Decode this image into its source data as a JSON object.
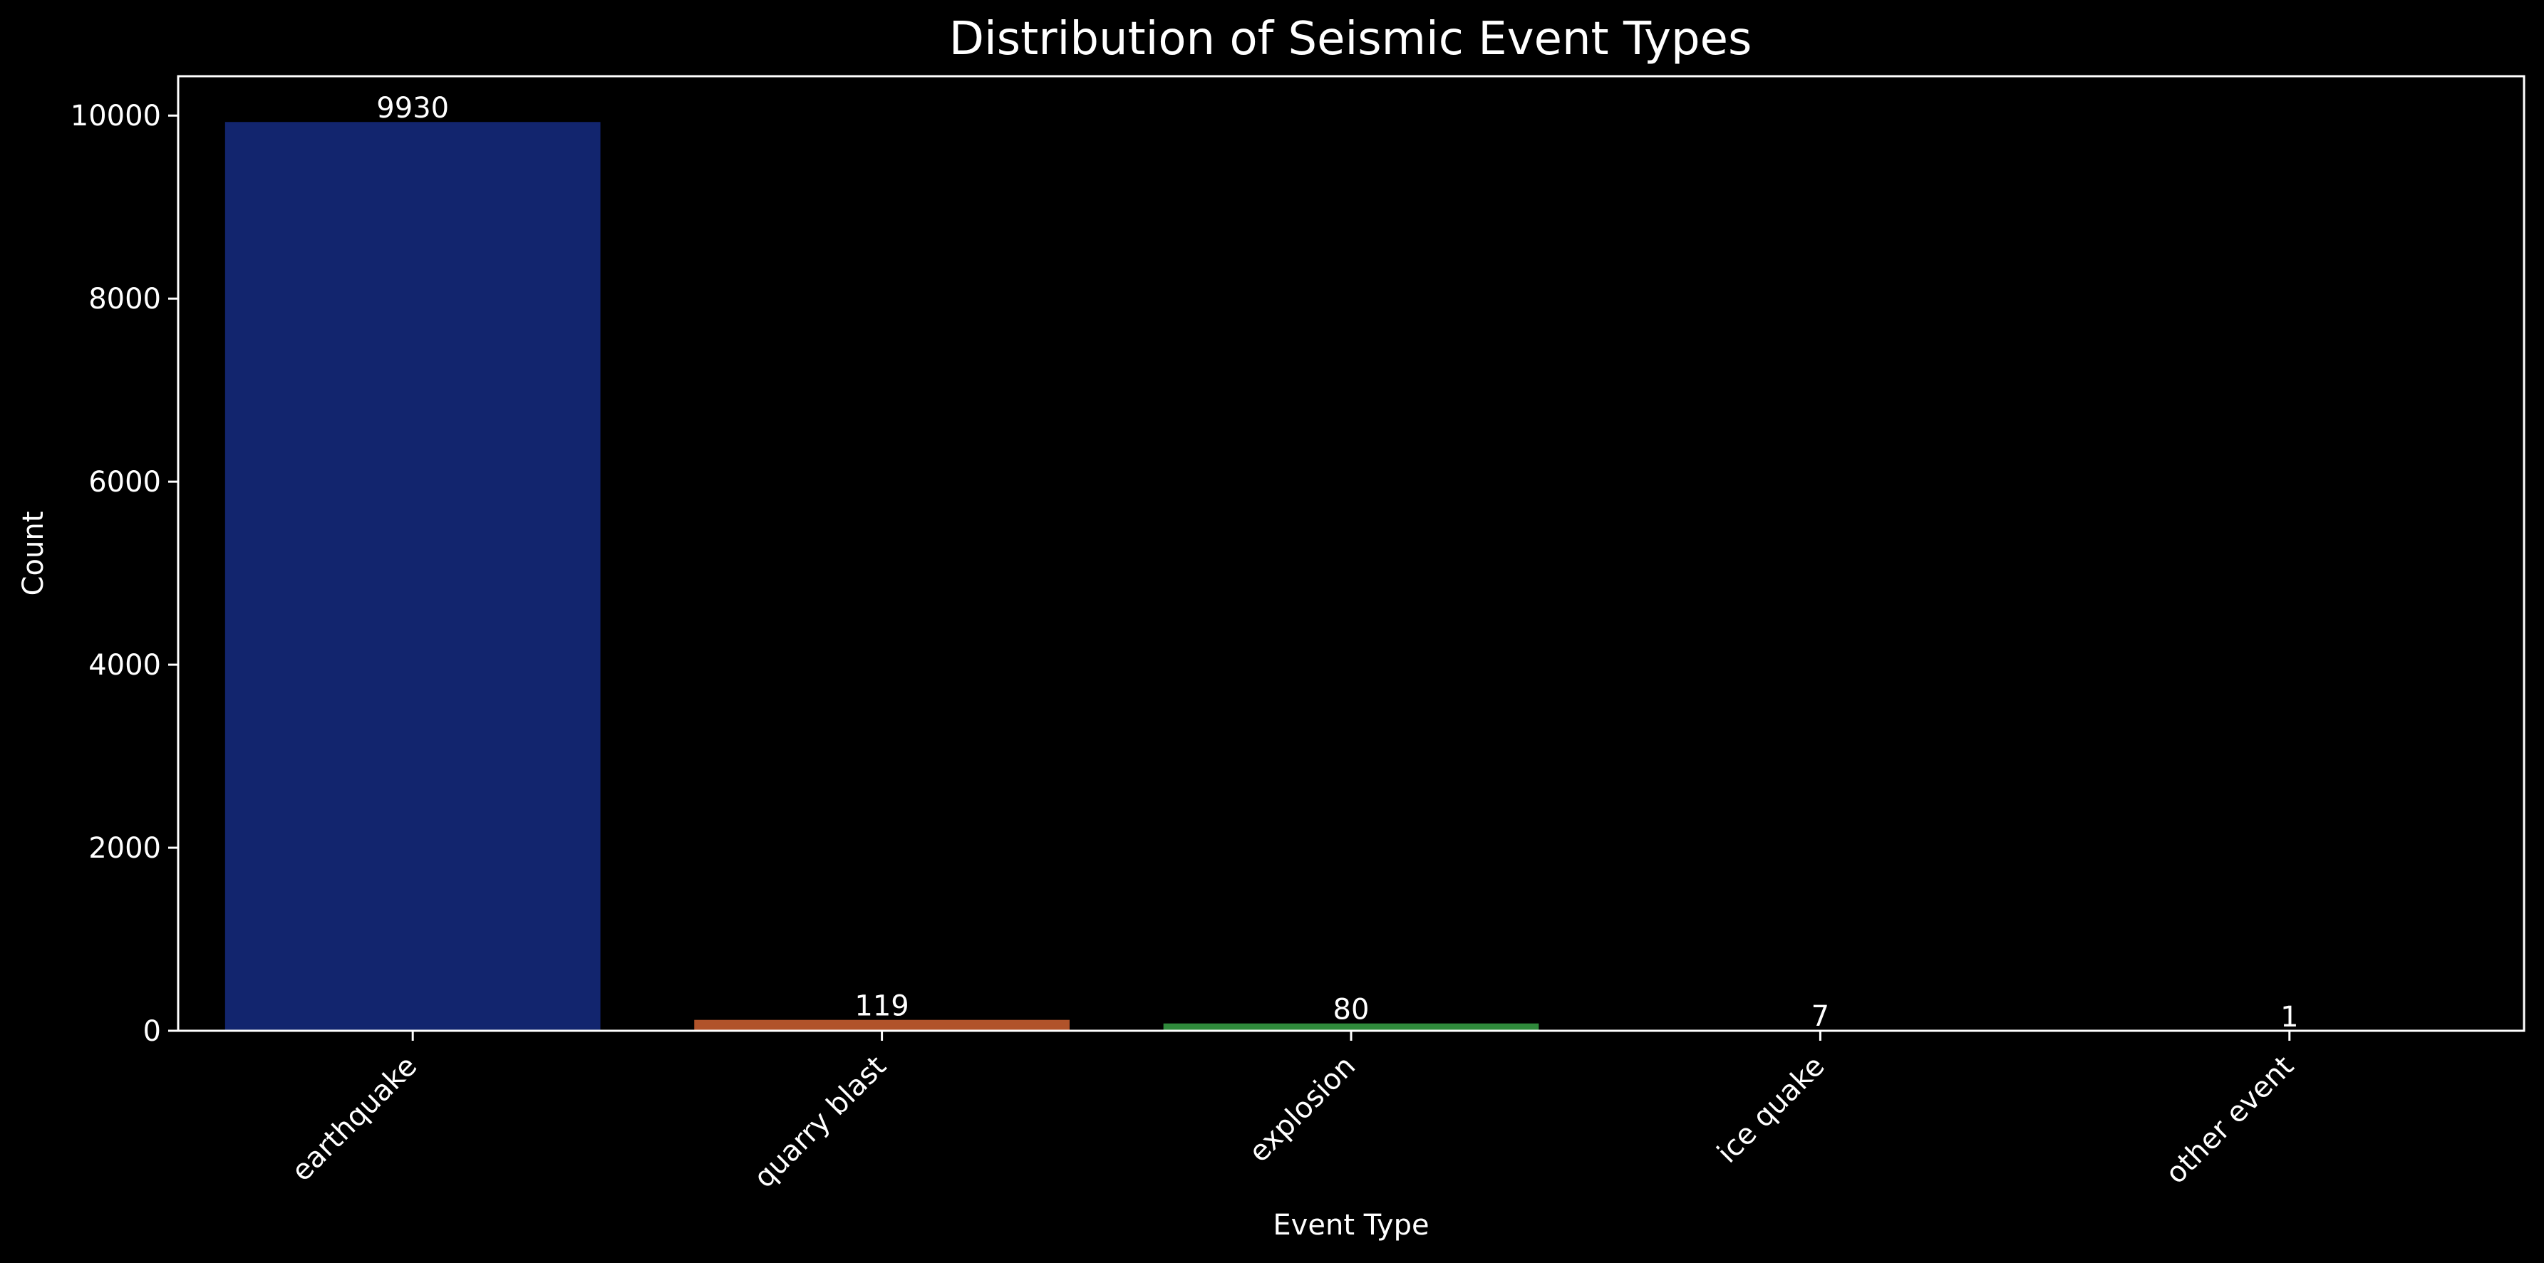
{
  "chart_data": {
    "type": "bar",
    "title": "Distribution of Seismic Event Types",
    "xlabel": "Event Type",
    "ylabel": "Count",
    "categories": [
      "earthquake",
      "quarry blast",
      "explosion",
      "ice quake",
      "other event"
    ],
    "values": [
      9930,
      119,
      80,
      7,
      1
    ],
    "data_labels": [
      "9930",
      "119",
      "80",
      "7",
      "1"
    ],
    "colors": [
      "#12256e",
      "#b1532a",
      "#2f8a3b",
      "#8a1e2a",
      "#5a3f8a"
    ],
    "ylim": [
      0,
      10430
    ],
    "yticks": [
      0,
      2000,
      4000,
      6000,
      8000,
      10000
    ],
    "ytick_labels": [
      "0",
      "2000",
      "4000",
      "6000",
      "8000",
      "10000"
    ],
    "xtick_rotation": 45,
    "grid": false,
    "background": "#000000",
    "foreground": "#ffffff"
  }
}
